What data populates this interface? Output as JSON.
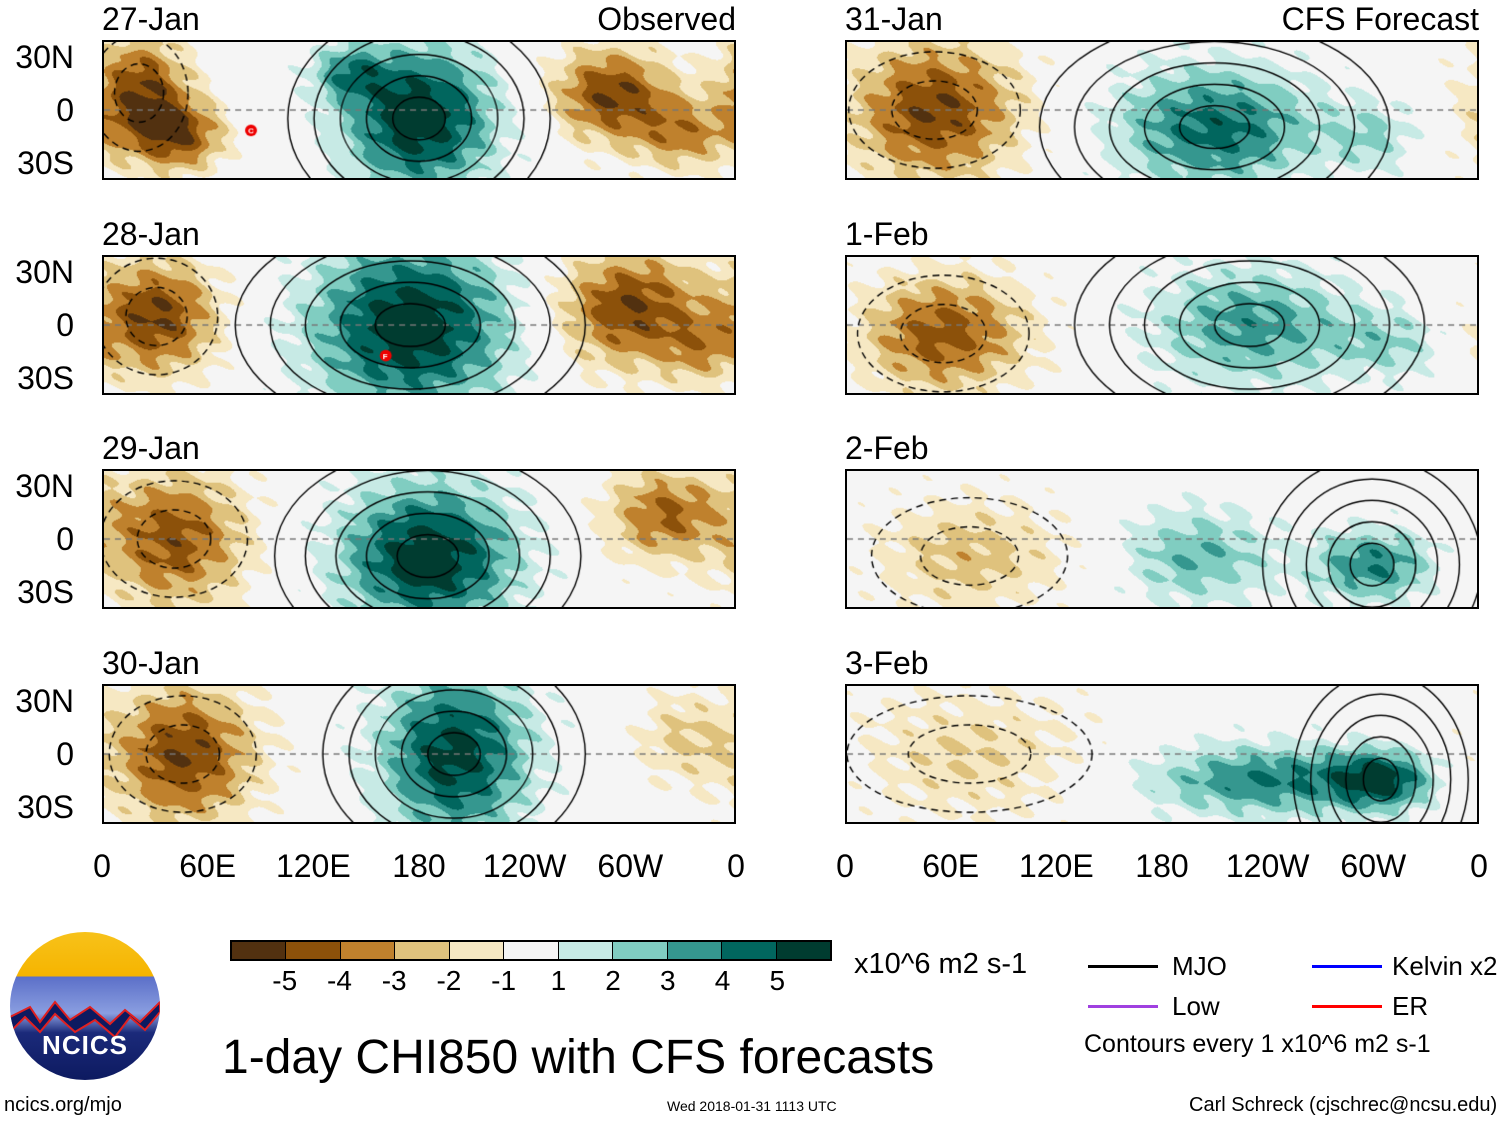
{
  "title": "1-day CHI850 with CFS forecasts",
  "site": "ncics.org/mjo",
  "timestamp": "Wed 2018-01-31 1113 UTC",
  "author": "Carl Schreck (cjschrec@ncsu.edu)",
  "logo_text": "NCICS",
  "headers": {
    "observed": "Observed",
    "forecast": "CFS Forecast"
  },
  "colorbar": {
    "units": "x10^6 m2 s-1",
    "labels": [
      "-5",
      "-4",
      "-3",
      "-2",
      "-1",
      "1",
      "2",
      "3",
      "4",
      "5"
    ],
    "colors": [
      "#523110",
      "#8c510a",
      "#bf812d",
      "#dfc27d",
      "#f6e8c3",
      "#f5f5f5",
      "#c7eae5",
      "#80cdc1",
      "#35978f",
      "#01665e",
      "#003c30"
    ]
  },
  "legend": {
    "items": [
      {
        "label": "MJO",
        "color": "#000000"
      },
      {
        "label": "Kelvin x2",
        "color": "#0000ff"
      },
      {
        "label": "Low",
        "color": "#a040e0"
      },
      {
        "label": "ER",
        "color": "#ff0000"
      }
    ],
    "note": "Contours every 1 x10^6 m2 s-1"
  },
  "chart_data": {
    "type": "heatmap",
    "variable": "CHI850",
    "lat_labels": [
      "30N",
      "0",
      "30S"
    ],
    "lon_labels": [
      "0",
      "60E",
      "120E",
      "180",
      "120W",
      "60W",
      "0"
    ],
    "panels": [
      {
        "date": "27-Jan",
        "kind": "observed",
        "anomalies": [
          [
            20,
            10,
            -5,
            20,
            25
          ],
          [
            45,
            -15,
            -4,
            18,
            15
          ],
          [
            180,
            -5,
            6,
            30,
            30
          ],
          [
            140,
            22,
            3,
            15,
            12
          ],
          [
            290,
            10,
            -5,
            25,
            20
          ],
          [
            330,
            -15,
            -3,
            20,
            15
          ]
        ],
        "storm": {
          "lon": 84,
          "lat": -12,
          "letter": "C"
        }
      },
      {
        "date": "28-Jan",
        "kind": "observed",
        "anomalies": [
          [
            30,
            5,
            -5,
            25,
            25
          ],
          [
            175,
            0,
            6,
            40,
            35
          ],
          [
            300,
            10,
            -5,
            30,
            25
          ],
          [
            340,
            -15,
            -2,
            15,
            15
          ]
        ],
        "storm": {
          "lon": 161,
          "lat": -18,
          "letter": "F"
        }
      },
      {
        "date": "29-Jan",
        "kind": "observed",
        "anomalies": [
          [
            40,
            0,
            -4.5,
            30,
            30
          ],
          [
            185,
            -10,
            6,
            35,
            30
          ],
          [
            320,
            15,
            -4,
            25,
            20
          ]
        ]
      },
      {
        "date": "30-Jan",
        "kind": "observed",
        "anomalies": [
          [
            45,
            0,
            -5,
            30,
            30
          ],
          [
            200,
            0,
            5.5,
            30,
            35
          ],
          [
            330,
            10,
            -2,
            20,
            20
          ]
        ]
      },
      {
        "date": "31-Jan",
        "kind": "forecast",
        "anomalies": [
          [
            50,
            0,
            -5,
            35,
            30
          ],
          [
            210,
            -10,
            4.5,
            40,
            25
          ],
          [
            300,
            -15,
            2,
            20,
            15
          ]
        ]
      },
      {
        "date": "1-Feb",
        "kind": "forecast",
        "anomalies": [
          [
            55,
            -5,
            -4.5,
            35,
            25
          ],
          [
            230,
            0,
            3.5,
            40,
            25
          ],
          [
            310,
            -10,
            2,
            25,
            15
          ]
        ]
      },
      {
        "date": "2-Feb",
        "kind": "forecast",
        "anomalies": [
          [
            70,
            -10,
            -2.5,
            40,
            25
          ],
          [
            200,
            -10,
            3,
            30,
            20
          ],
          [
            300,
            -15,
            4,
            25,
            15
          ]
        ]
      },
      {
        "date": "3-Feb",
        "kind": "forecast",
        "anomalies": [
          [
            70,
            0,
            -2,
            50,
            30
          ],
          [
            240,
            -15,
            4,
            50,
            15
          ],
          [
            305,
            -15,
            4.5,
            20,
            12
          ]
        ]
      }
    ]
  }
}
